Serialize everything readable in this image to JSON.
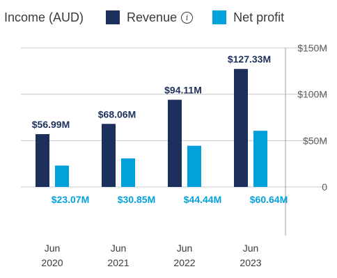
{
  "legend": {
    "title": "Income (AUD)",
    "items": [
      {
        "label": "Revenue",
        "color": "#1d2f5c",
        "icon": "info-icon",
        "icon_glyph": "i"
      },
      {
        "label": "Net profit",
        "color": "#03a1dc"
      }
    ]
  },
  "colors": {
    "revenue": "#1d2f5c",
    "net_profit": "#03a1dc",
    "grid": "#c8c8c8",
    "axis_line": "#9e9e9e"
  },
  "chart_data": {
    "type": "bar",
    "title": "Income (AUD)",
    "categories": [
      [
        "Jun",
        "2020"
      ],
      [
        "Jun",
        "2021"
      ],
      [
        "Jun",
        "2022"
      ],
      [
        "Jun",
        "2023"
      ]
    ],
    "series": [
      {
        "name": "Revenue",
        "values": [
          56.99,
          68.06,
          94.11,
          127.33
        ],
        "labels": [
          "$56.99M",
          "$68.06M",
          "$94.11M",
          "$127.33M"
        ]
      },
      {
        "name": "Net profit",
        "values": [
          23.07,
          30.85,
          44.44,
          60.64
        ],
        "labels": [
          "$23.07M",
          "$30.85M",
          "$44.44M",
          "$60.64M"
        ]
      }
    ],
    "ylim": [
      -50,
      150
    ],
    "yticks": [
      {
        "value": 150,
        "label": "$150M"
      },
      {
        "value": 100,
        "label": "$100M"
      },
      {
        "value": 50,
        "label": "$50M"
      },
      {
        "value": 0,
        "label": "0"
      }
    ],
    "ylabel": "",
    "xlabel": "",
    "grid": true,
    "y_axis_position": "right",
    "legend_position": "top-left"
  }
}
